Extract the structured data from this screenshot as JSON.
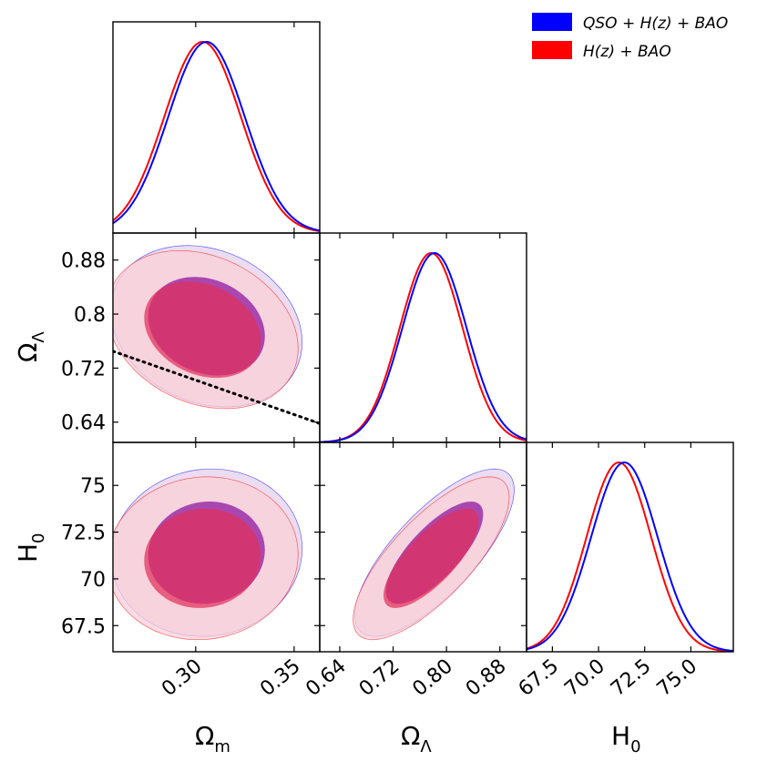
{
  "chart_data": {
    "type": "triangle-corner-plot",
    "parameters": [
      {
        "id": "om",
        "label": "Ω",
        "label_sub": "m",
        "range": [
          0.258,
          0.363
        ],
        "ticks": [
          0.3,
          0.35
        ],
        "tick_labels": [
          "0.30",
          "0.35"
        ]
      },
      {
        "id": "ol",
        "label": "Ω",
        "label_sub": "Λ",
        "range": [
          0.61,
          0.92
        ],
        "ticks": [
          0.64,
          0.72,
          0.8,
          0.88
        ],
        "tick_labels": [
          "0.64",
          "0.72",
          "0.80",
          "0.88"
        ]
      },
      {
        "id": "h0",
        "label": "H",
        "label_sub": "0",
        "range": [
          66.1,
          77.3
        ],
        "ticks": [
          67.5,
          70.0,
          72.5,
          75.0
        ],
        "tick_labels": [
          "67.5",
          "70.0",
          "72.5",
          "75.0"
        ]
      }
    ],
    "y_tick_labels": {
      "ol": [
        "0.64",
        "0.72",
        "0.8",
        "0.88"
      ],
      "h0": [
        "67.5",
        "70",
        "72.5",
        "75"
      ]
    },
    "series": [
      {
        "name": "QSO + H(z) + BAO",
        "color": "#0000ff",
        "fill_outer": "#e6d0ea",
        "fill_inner": "#8a10a0",
        "means": {
          "om": 0.3055,
          "ol": 0.782,
          "h0": 71.4
        },
        "sigmas": {
          "om": 0.0195,
          "ol": 0.048,
          "h0": 1.8
        },
        "correlations": {
          "om_ol": -0.2,
          "om_h0": 0.05,
          "ol_h0": 0.75
        }
      },
      {
        "name": "H(z) + BAO",
        "color": "#ff0000",
        "fill_outer": "#fbd0d8",
        "fill_inner": "#e0305a",
        "means": {
          "om": 0.3035,
          "ol": 0.777,
          "h0": 71.1
        },
        "sigmas": {
          "om": 0.0195,
          "ol": 0.047,
          "h0": 1.75
        },
        "correlations": {
          "om_ol": -0.24,
          "om_h0": 0.05,
          "ol_h0": 0.75
        }
      }
    ],
    "reference_line": {
      "style": "dotted",
      "panel": "ol_vs_om",
      "points": [
        [
          0.258,
          0.745
        ],
        [
          0.363,
          0.638
        ]
      ]
    },
    "legend": {
      "position": "top-right",
      "entries": [
        "QSO + H(z) + BAO",
        "H(z) + BAO"
      ]
    }
  }
}
